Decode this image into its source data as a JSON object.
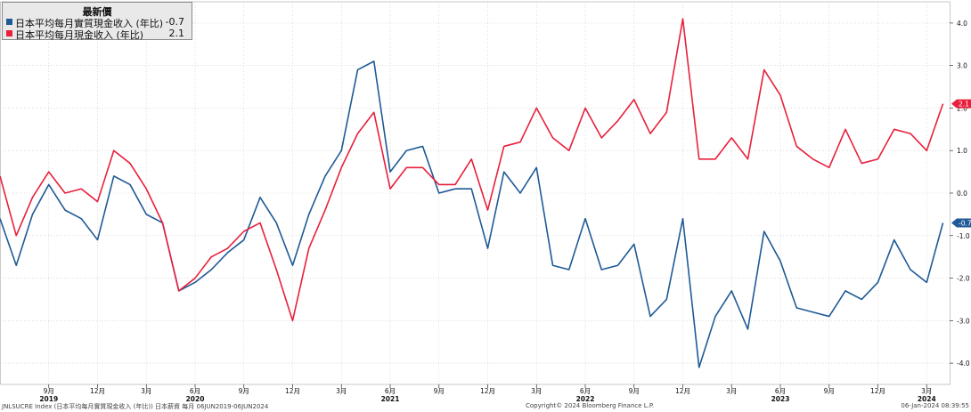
{
  "legend": {
    "title": "最新價",
    "items": [
      {
        "label": "日本平均每月實質現金收入 (年比)",
        "value": "-0.7",
        "color": "#1f5a96"
      },
      {
        "label": "日本平均每月現金收入 (年比)",
        "value": "2.1",
        "color": "#e8203c"
      }
    ]
  },
  "footer": {
    "left": "JNLSUCRE Index (日本平均每月實質現金收入 (年比)) 日本薪資 每月 06JUN2019-06JUN2024",
    "center": "Copyright© 2024 Bloomberg Finance L.P.",
    "right": "06-Jan-2024 08:39:55"
  },
  "chart_data": {
    "type": "line",
    "x": [
      "2019-06",
      "2019-07",
      "2019-08",
      "2019-09",
      "2019-10",
      "2019-11",
      "2019-12",
      "2020-01",
      "2020-02",
      "2020-03",
      "2020-04",
      "2020-05",
      "2020-06",
      "2020-07",
      "2020-08",
      "2020-09",
      "2020-10",
      "2020-11",
      "2020-12",
      "2021-01",
      "2021-02",
      "2021-03",
      "2021-04",
      "2021-05",
      "2021-06",
      "2021-07",
      "2021-08",
      "2021-09",
      "2021-10",
      "2021-11",
      "2021-12",
      "2022-01",
      "2022-02",
      "2022-03",
      "2022-04",
      "2022-05",
      "2022-06",
      "2022-07",
      "2022-08",
      "2022-09",
      "2022-10",
      "2022-11",
      "2022-12",
      "2023-01",
      "2023-02",
      "2023-03",
      "2023-04",
      "2023-05",
      "2023-06",
      "2023-07",
      "2023-08",
      "2023-09",
      "2023-10",
      "2023-11",
      "2023-12",
      "2024-01",
      "2024-02",
      "2024-03",
      "2024-04"
    ],
    "series": [
      {
        "name": "日本平均每月實質現金收入 (年比)",
        "color": "#1f5a96",
        "values": [
          -0.6,
          -1.7,
          -0.5,
          0.2,
          -0.4,
          -0.6,
          -1.1,
          0.4,
          0.2,
          -0.5,
          -0.7,
          -2.3,
          -2.1,
          -1.8,
          -1.4,
          -1.1,
          -0.1,
          -0.7,
          -1.7,
          -0.5,
          0.4,
          1.0,
          2.9,
          3.1,
          0.5,
          1.0,
          1.1,
          0.0,
          0.1,
          0.1,
          -1.3,
          0.5,
          0.0,
          0.6,
          -1.7,
          -1.8,
          -0.6,
          -1.8,
          -1.7,
          -1.2,
          -2.9,
          -2.5,
          -0.6,
          -4.1,
          -2.9,
          -2.3,
          -3.2,
          -0.9,
          -1.6,
          -2.7,
          -2.8,
          -2.9,
          -2.3,
          -2.5,
          -2.1,
          -1.1,
          -1.8,
          -2.1,
          -0.7
        ]
      },
      {
        "name": "日本平均每月現金收入 (年比)",
        "color": "#e8203c",
        "values": [
          0.4,
          -1.0,
          -0.1,
          0.5,
          0.0,
          0.1,
          -0.2,
          1.0,
          0.7,
          0.1,
          -0.7,
          -2.3,
          -2.0,
          -1.5,
          -1.3,
          -0.9,
          -0.7,
          -1.8,
          -3.0,
          -1.3,
          -0.4,
          0.6,
          1.4,
          1.9,
          0.1,
          0.6,
          0.6,
          0.2,
          0.2,
          0.8,
          -0.4,
          1.1,
          1.2,
          2.0,
          1.3,
          1.0,
          2.0,
          1.3,
          1.7,
          2.2,
          1.4,
          1.9,
          4.1,
          0.8,
          0.8,
          1.3,
          0.8,
          2.9,
          2.3,
          1.1,
          0.8,
          0.6,
          1.5,
          0.7,
          0.8,
          1.5,
          1.4,
          1.0,
          2.1
        ]
      }
    ],
    "ylim": [
      -4.5,
      4.5
    ],
    "yticks": [
      "4.0",
      "3.0",
      "2.0",
      "1.0",
      "0.0",
      "-1.0",
      "-2.0",
      "-3.0",
      "-4.0"
    ],
    "xticks": [
      {
        "month": "9月",
        "year": "2019"
      },
      {
        "month": "12月",
        "year": ""
      },
      {
        "month": "3月",
        "year": ""
      },
      {
        "month": "6月",
        "year": "2020"
      },
      {
        "month": "9月",
        "year": ""
      },
      {
        "month": "12月",
        "year": ""
      },
      {
        "month": "3月",
        "year": ""
      },
      {
        "month": "6月",
        "year": "2021"
      },
      {
        "month": "9月",
        "year": ""
      },
      {
        "month": "12月",
        "year": ""
      },
      {
        "month": "3月",
        "year": ""
      },
      {
        "month": "6月",
        "year": "2022"
      },
      {
        "month": "9月",
        "year": ""
      },
      {
        "month": "12月",
        "year": ""
      },
      {
        "month": "3月",
        "year": ""
      },
      {
        "month": "6月",
        "year": "2023"
      },
      {
        "month": "9月",
        "year": ""
      },
      {
        "month": "12月",
        "year": ""
      },
      {
        "month": "3月",
        "year": "2024"
      }
    ],
    "last_value_tags": [
      "2.1",
      "-0.7"
    ],
    "grid": true
  }
}
